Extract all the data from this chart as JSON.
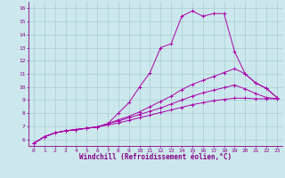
{
  "xlabel": "Windchill (Refroidissement éolien,°C)",
  "background_color": "#cce8ec",
  "grid_color": "#a8cdd4",
  "line_color": "#aa00aa",
  "line1_x": [
    0,
    1,
    2,
    3,
    4,
    5,
    6,
    7,
    8,
    9,
    10,
    11,
    12,
    13,
    14,
    15,
    16,
    17,
    18,
    19,
    20,
    21,
    22,
    23
  ],
  "line1_y": [
    5.7,
    6.2,
    6.5,
    6.65,
    6.75,
    6.85,
    6.95,
    7.2,
    8.0,
    8.8,
    10.0,
    11.1,
    13.0,
    13.3,
    15.4,
    15.8,
    15.4,
    15.6,
    15.6,
    12.7,
    11.0,
    10.3,
    9.9,
    9.2
  ],
  "line2_x": [
    0,
    1,
    2,
    3,
    4,
    5,
    6,
    7,
    8,
    9,
    10,
    11,
    12,
    13,
    14,
    15,
    16,
    17,
    18,
    19,
    20,
    21,
    22,
    23
  ],
  "line2_y": [
    5.7,
    6.2,
    6.5,
    6.65,
    6.75,
    6.85,
    6.95,
    7.2,
    7.5,
    7.75,
    8.1,
    8.5,
    8.9,
    9.3,
    9.8,
    10.2,
    10.5,
    10.8,
    11.1,
    11.4,
    11.0,
    10.3,
    9.9,
    9.2
  ],
  "line3_x": [
    0,
    1,
    2,
    3,
    4,
    5,
    6,
    7,
    8,
    9,
    10,
    11,
    12,
    13,
    14,
    15,
    16,
    17,
    18,
    19,
    20,
    21,
    22,
    23
  ],
  "line3_y": [
    5.7,
    6.2,
    6.5,
    6.65,
    6.75,
    6.85,
    6.95,
    7.2,
    7.4,
    7.65,
    7.9,
    8.15,
    8.4,
    8.7,
    9.0,
    9.3,
    9.55,
    9.75,
    9.95,
    10.15,
    9.85,
    9.5,
    9.2,
    9.1
  ],
  "line4_x": [
    0,
    1,
    2,
    3,
    4,
    5,
    6,
    7,
    8,
    9,
    10,
    11,
    12,
    13,
    14,
    15,
    16,
    17,
    18,
    19,
    20,
    21,
    22,
    23
  ],
  "line4_y": [
    5.7,
    6.2,
    6.5,
    6.65,
    6.75,
    6.85,
    6.95,
    7.1,
    7.25,
    7.45,
    7.65,
    7.85,
    8.05,
    8.25,
    8.45,
    8.65,
    8.8,
    8.95,
    9.05,
    9.15,
    9.15,
    9.1,
    9.1,
    9.1
  ],
  "ylim": [
    5.5,
    16.5
  ],
  "xlim": [
    -0.5,
    23.5
  ],
  "yticks": [
    6,
    7,
    8,
    9,
    10,
    11,
    12,
    13,
    14,
    15,
    16
  ],
  "xticks": [
    0,
    1,
    2,
    3,
    4,
    5,
    6,
    7,
    8,
    9,
    10,
    11,
    12,
    13,
    14,
    15,
    16,
    17,
    18,
    19,
    20,
    21,
    22,
    23
  ],
  "tick_fontsize": 4.5,
  "xlabel_fontsize": 5.5,
  "marker_size": 3.0,
  "line_width": 0.7
}
